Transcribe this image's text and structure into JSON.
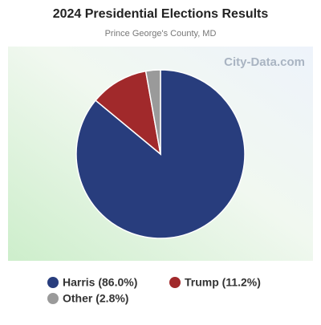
{
  "chart_data": {
    "type": "pie",
    "title": "2024 Presidential Elections Results",
    "subtitle": "Prince George's County, MD",
    "watermark": "City-Data.com",
    "categories": [
      "Harris (86.0%)",
      "Trump (11.2%)",
      "Other (2.8%)"
    ],
    "values": [
      86.0,
      11.2,
      2.8
    ],
    "colors": [
      "#283d7d",
      "#a1292b",
      "#9a9a9a"
    ]
  }
}
